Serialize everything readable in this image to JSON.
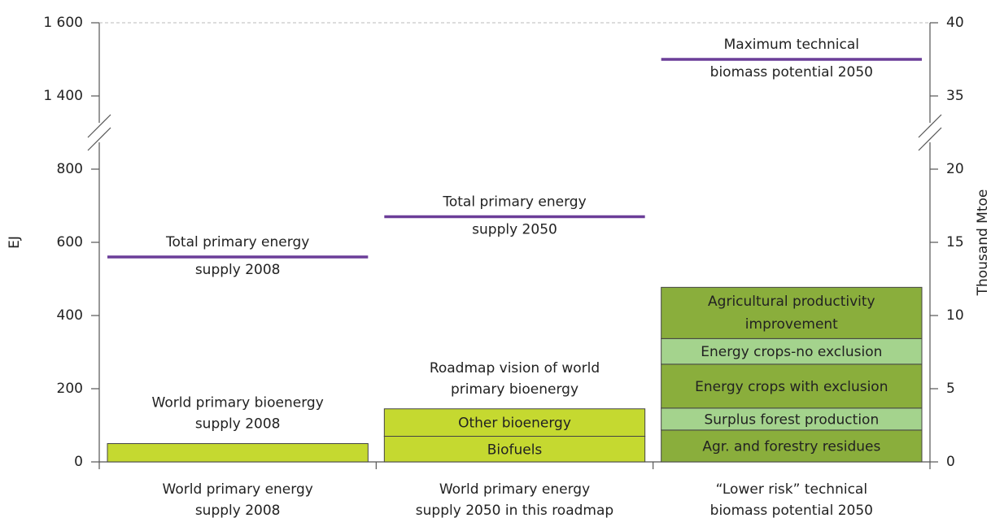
{
  "chart_data": {
    "type": "stacked-bar",
    "ylabel": "EJ",
    "y2label": "Thousand Mtoe",
    "ylim": [
      0,
      1600
    ],
    "y_break": [
      900,
      1300
    ],
    "yticks": [
      0,
      200,
      400,
      600,
      800,
      {
        "value": 1400,
        "label": "1 400"
      },
      {
        "value": 1600,
        "label": "1 600"
      }
    ],
    "y2lim": [
      0,
      40
    ],
    "y2_break": [
      22.5,
      32.5
    ],
    "y2ticks": [
      0,
      5,
      10,
      15,
      20,
      35,
      40
    ],
    "categories": [
      [
        "World primary energy",
        "supply 2008"
      ],
      [
        "World primary energy",
        "supply 2050 in this roadmap"
      ],
      [
        "“Lower risk” technical",
        "biomass potential 2050"
      ]
    ],
    "line_color": "#6b3e98",
    "stacks": [
      {
        "label": [
          "World  primary bioenergy",
          "supply 2008"
        ],
        "segments": [
          {
            "value": 50,
            "color": "#c5d930"
          }
        ],
        "reference": {
          "label": [
            "Total primary energy",
            "supply 2008"
          ],
          "value": 560
        }
      },
      {
        "label": [
          "Roadmap vision of world",
          "primary bioenergy"
        ],
        "segments": [
          {
            "name": "Biofuels",
            "value": 70,
            "color": "#c5d930"
          },
          {
            "name": "Other bioenergy",
            "value": 75,
            "color": "#c5d930"
          }
        ],
        "reference": {
          "label": [
            "Total primary energy",
            "supply 2050"
          ],
          "value": 670
        }
      },
      {
        "segments": [
          {
            "name": "Agr. and forestry residues",
            "value": 87,
            "color": "#8aae3c"
          },
          {
            "name": "Surplus forest production",
            "value": 60,
            "color": "#a4d38d"
          },
          {
            "name": "Energy crops with exclusion",
            "value": 120,
            "color": "#8aae3c"
          },
          {
            "name": "Energy crops-no exclusion",
            "value": 70,
            "color": "#a4d38d"
          },
          {
            "name": "Agricultural productivity improvement",
            "value": 140,
            "color": "#8aae3c"
          }
        ],
        "reference": {
          "label": [
            "Maximum technical",
            "biomass potential 2050"
          ],
          "value": 1500
        }
      }
    ]
  }
}
